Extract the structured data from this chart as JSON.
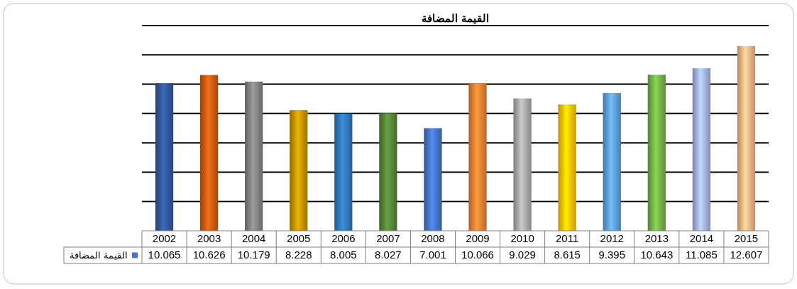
{
  "chart_data": {
    "type": "bar",
    "title": "القيمة المضافة",
    "categories": [
      "2002",
      "2003",
      "2004",
      "2005",
      "2006",
      "2007",
      "2008",
      "2009",
      "2010",
      "2011",
      "2012",
      "2013",
      "2014",
      "2015"
    ],
    "series": [
      {
        "name": "القيمة المضافة",
        "color": "#4472c4",
        "values": [
          10.065,
          10.626,
          10.179,
          8.228,
          8.005,
          8.027,
          7.001,
          10.066,
          9.029,
          8.615,
          9.395,
          10.643,
          11.085,
          12.607
        ],
        "colors": [
          "#2f5597",
          "#c55a11",
          "#7f7f7f",
          "#bf9000",
          "#2e75b6",
          "#548235",
          "#4472c4",
          "#ed7d31",
          "#a5a5a5",
          "#ffc000",
          "#5b9bd5",
          "#70ad47",
          "#9dafe0",
          "#f4b183"
        ]
      }
    ],
    "ylim": [
      0,
      14
    ],
    "yticks": [
      {
        "value": 2,
        "label": null
      },
      {
        "value": 4,
        "label": null
      },
      {
        "value": 6,
        "label": null
      },
      {
        "value": 8,
        "label": null
      },
      {
        "value": 10,
        "label": null
      },
      {
        "value": 12,
        "label": null
      },
      {
        "value": 14,
        "label": null
      }
    ],
    "grid": "y",
    "tick_labels": "x",
    "data_labels": true,
    "legend": "bottom left"
  }
}
